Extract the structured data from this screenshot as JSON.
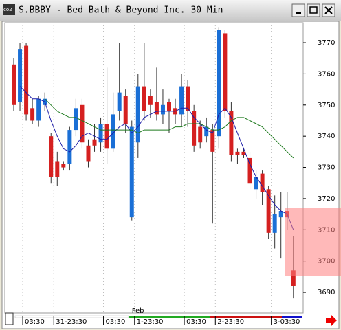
{
  "window": {
    "title": "S.BBBY - Bed Bath & Beyond Inc. 30 Min"
  },
  "chart_data": {
    "type": "candlestick",
    "categories": [
      null,
      "03:30",
      null,
      null,
      null,
      null,
      "31-23:30",
      null,
      null,
      null,
      null,
      null,
      null,
      null,
      "03:30",
      null,
      null,
      null,
      null,
      "1-23:30",
      null,
      null,
      null,
      null,
      null,
      null,
      null,
      "03:30",
      null,
      null,
      null,
      null,
      "2-23:30",
      null,
      null,
      null,
      null,
      null,
      null,
      null,
      null,
      "3-03:30",
      null,
      null,
      null,
      null
    ],
    "annotation": "Feb",
    "open": [
      3763,
      3751,
      3769,
      3749,
      3745,
      3750,
      3740,
      3732,
      3731,
      3731,
      3742,
      3750,
      3737,
      3739,
      3738,
      3744,
      3736,
      3748,
      3753,
      3714,
      3738,
      3756,
      3753,
      3751,
      3747,
      3751,
      3749,
      3747,
      3756,
      3748,
      3743,
      3740,
      3742,
      3740,
      3773,
      3748,
      3735,
      3735,
      3733,
      3723,
      3728,
      3723,
      3709,
      3714,
      3716,
      3697
    ],
    "high": [
      3765,
      3770,
      3770,
      3752,
      3753,
      3754,
      3741,
      3735,
      3732,
      3743,
      3752,
      3752,
      3739,
      3744,
      3746,
      3762,
      3754,
      3770,
      3755,
      3745,
      3760,
      3770,
      3755,
      3762,
      3755,
      3752,
      3752,
      3760,
      3758,
      3750,
      3745,
      3746,
      3744,
      3775,
      3774,
      3751,
      3736,
      3736,
      3735,
      3729,
      3729,
      3724,
      3721,
      3722,
      3722,
      3708
    ],
    "low": [
      3748,
      3748,
      3745,
      3744,
      3743,
      3748,
      3725,
      3724,
      3729,
      3729,
      3740,
      3736,
      3730,
      3735,
      3735,
      3731,
      3735,
      3745,
      3741,
      3713,
      3733,
      3745,
      3746,
      3745,
      3744,
      3741,
      3744,
      3743,
      3743,
      3735,
      3736,
      3738,
      3712,
      3736,
      3746,
      3732,
      3731,
      3733,
      3723,
      3720,
      3718,
      3707,
      3704,
      3701,
      3710,
      3688
    ],
    "close": [
      3750,
      3768,
      3747,
      3745,
      3752,
      3752,
      3727,
      3727,
      3730,
      3742,
      3749,
      3738,
      3732,
      3737,
      3744,
      3736,
      3747,
      3754,
      3744,
      3743,
      3756,
      3748,
      3750,
      3747,
      3750,
      3748,
      3747,
      3756,
      3748,
      3737,
      3738,
      3743,
      3735,
      3774,
      3748,
      3734,
      3734,
      3734,
      3725,
      3727,
      3722,
      3709,
      3715,
      3716,
      3714,
      3692
    ],
    "up_color": "#1a6fd6",
    "down_color": "#d52020",
    "lines": [
      {
        "color": "#1c1ca8",
        "values": [
          null,
          3756,
          3754,
          3752,
          3752,
          3751,
          3745,
          3740,
          3736,
          3735,
          3737,
          3740,
          3741,
          3740,
          3739,
          3739,
          3741,
          3743,
          3744,
          3741,
          3743,
          3746,
          3747,
          3748,
          3748,
          3748,
          3748,
          3749,
          3749,
          3746,
          3744,
          3742,
          3741,
          3747,
          3749,
          3746,
          3741,
          3736,
          3731,
          3727,
          3724,
          3721,
          3718,
          3716,
          3715,
          3710
        ]
      },
      {
        "color": "#1e7a1e",
        "values": [
          null,
          null,
          null,
          null,
          null,
          3752,
          3750,
          3748,
          3747,
          3746,
          3746,
          3745,
          3744,
          3743,
          3742,
          3742,
          3742,
          3742,
          3742,
          3742,
          3741,
          3742,
          3742,
          3742,
          3742,
          3742,
          3743,
          3743,
          3744,
          3744,
          3744,
          3743,
          3742,
          3742,
          3743,
          3745,
          3746,
          3746,
          3745,
          3744,
          3743,
          3741,
          3739,
          3737,
          3735,
          3733
        ]
      }
    ],
    "ylim": [
      3683.4,
      3776.4
    ],
    "yticks": [
      3690,
      3700,
      3710,
      3720,
      3730,
      3740,
      3750,
      3760,
      3770
    ]
  }
}
